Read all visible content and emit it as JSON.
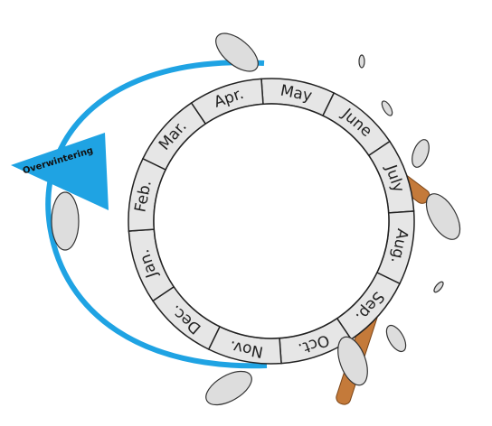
{
  "ring": {
    "months": [
      "May",
      "June",
      "July",
      "Aug.",
      "Sep.",
      "Oct.",
      "Nov.",
      "Dec.",
      "Jan.",
      "Feb.",
      "Mar.",
      "Apr."
    ]
  },
  "arrow": {
    "label": "Overwintering"
  }
}
